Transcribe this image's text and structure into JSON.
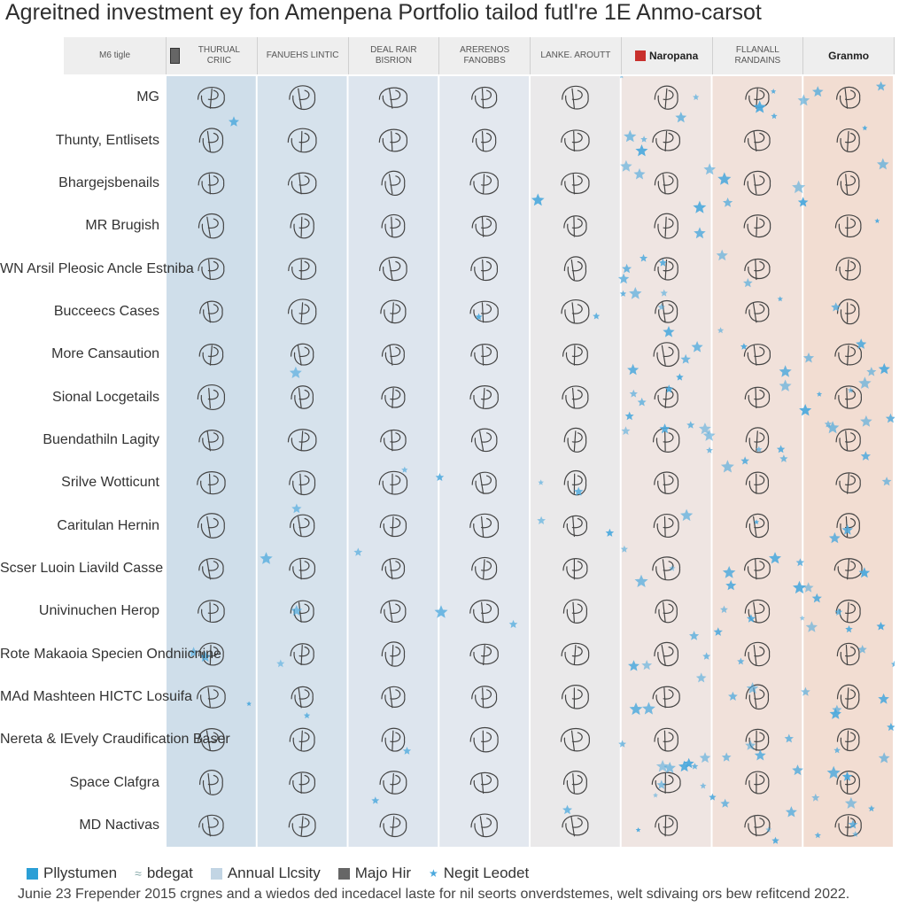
{
  "title": "Agreitned investment ey fon Amenpena Portfolio tailod futl're 1E Anmo-carsot",
  "columns": [
    {
      "label": "M6 tigle",
      "style": "plain",
      "icon": ""
    },
    {
      "label": "THURUAL CRIIC",
      "style": "plain",
      "icon": "document-icon"
    },
    {
      "label": "FANUEHS LINTIC",
      "style": "plain",
      "icon": ""
    },
    {
      "label": "DEAL RAIR BISRION",
      "style": "plain",
      "icon": ""
    },
    {
      "label": "ARERENOS FANOBBS",
      "style": "plain",
      "icon": ""
    },
    {
      "label": "LANKE. AROUTT",
      "style": "plain",
      "icon": ""
    },
    {
      "label": "Naropana",
      "style": "bold",
      "icon": "flag-icon"
    },
    {
      "label": "FLLANALL RANDAINS",
      "style": "plain",
      "icon": ""
    },
    {
      "label": "Granmo",
      "style": "bold",
      "icon": ""
    }
  ],
  "rows": [
    "MG",
    "Thunty, Entlisets",
    "Bhargejsbenails",
    "MR Brugish",
    "WN Arsil Pleosic Ancle Estniba",
    "Bucceecs Cases",
    "More Cansaution",
    "Sional Locgetails",
    "Buendathiln Lagity",
    "Srilve Wotticunt",
    "Caritulan Hernin",
    "Scser Luoin Liavild Casse",
    "Univinuchen Herop",
    "Rote Makaoia Specien Ondniicnine",
    "MAd Mashteen HICTC Losuifa",
    "Nereta & IEvely Craudification Baser",
    "Space Clafgra",
    "MD Nactivas"
  ],
  "legend": [
    {
      "label": "Pllystumen",
      "color": "#2b9fd6",
      "shape": "square"
    },
    {
      "label": "bdegat",
      "color": "#8aa",
      "shape": "line"
    },
    {
      "label": "Annual Llcsity",
      "color": "#c2d5e4",
      "shape": "square"
    },
    {
      "label": "Majo Hir",
      "color": "#666666",
      "shape": "square"
    },
    {
      "label": "Negit Leodet",
      "color": "#4aa8dd",
      "shape": "star"
    }
  ],
  "footnote": "Junie 23 Frepender 2015 crgnes and a wiedos ded incedacel laste for nil seorts onverdstemes, welt sdivaing ors bew refitcend 2022.",
  "chart_data": {
    "type": "heatmap",
    "title": "Agreitned investment ey fon Amenpena Portfolio tailod futl're 1E Anmo-carsot",
    "categories": [
      "M6 tigle",
      "THURUAL CRIIC",
      "FANUEHS LINTIC",
      "DEAL RAIR BISRION",
      "ARERENOS FANOBBS",
      "LANKE. AROUTT",
      "Naropana",
      "FLLANALL RANDAINS",
      "Granmo"
    ],
    "row_labels": [
      "MG",
      "Thunty, Entlisets",
      "Bhargejsbenails",
      "MR Brugish",
      "WN Arsil Pleosic Ancle Estniba",
      "Bucceecs Cases",
      "More Cansaution",
      "Sional Locgetails",
      "Buendathiln Lagity",
      "Srilve Wotticunt",
      "Caritulan Hernin",
      "Scser Luoin Liavild Casse",
      "Univinuchen Herop",
      "Rote Makaoia Specien Ondniicnine",
      "MAd Mashteen HICTC Losuifa",
      "Nereta & IEvely Craudification Baser",
      "Space Clafgra",
      "MD Nactivas"
    ],
    "column_tint": [
      "#c9d9e8",
      "#cfdeea",
      "#d6e2ec",
      "#dde5ee",
      "#e3e8ef",
      "#eae9ea",
      "#efe5e2",
      "#f1e1da",
      "#f2ddd2"
    ],
    "highlight_columns": [
      6,
      7,
      8
    ],
    "grid": true,
    "legend_position": "bottom-left"
  }
}
